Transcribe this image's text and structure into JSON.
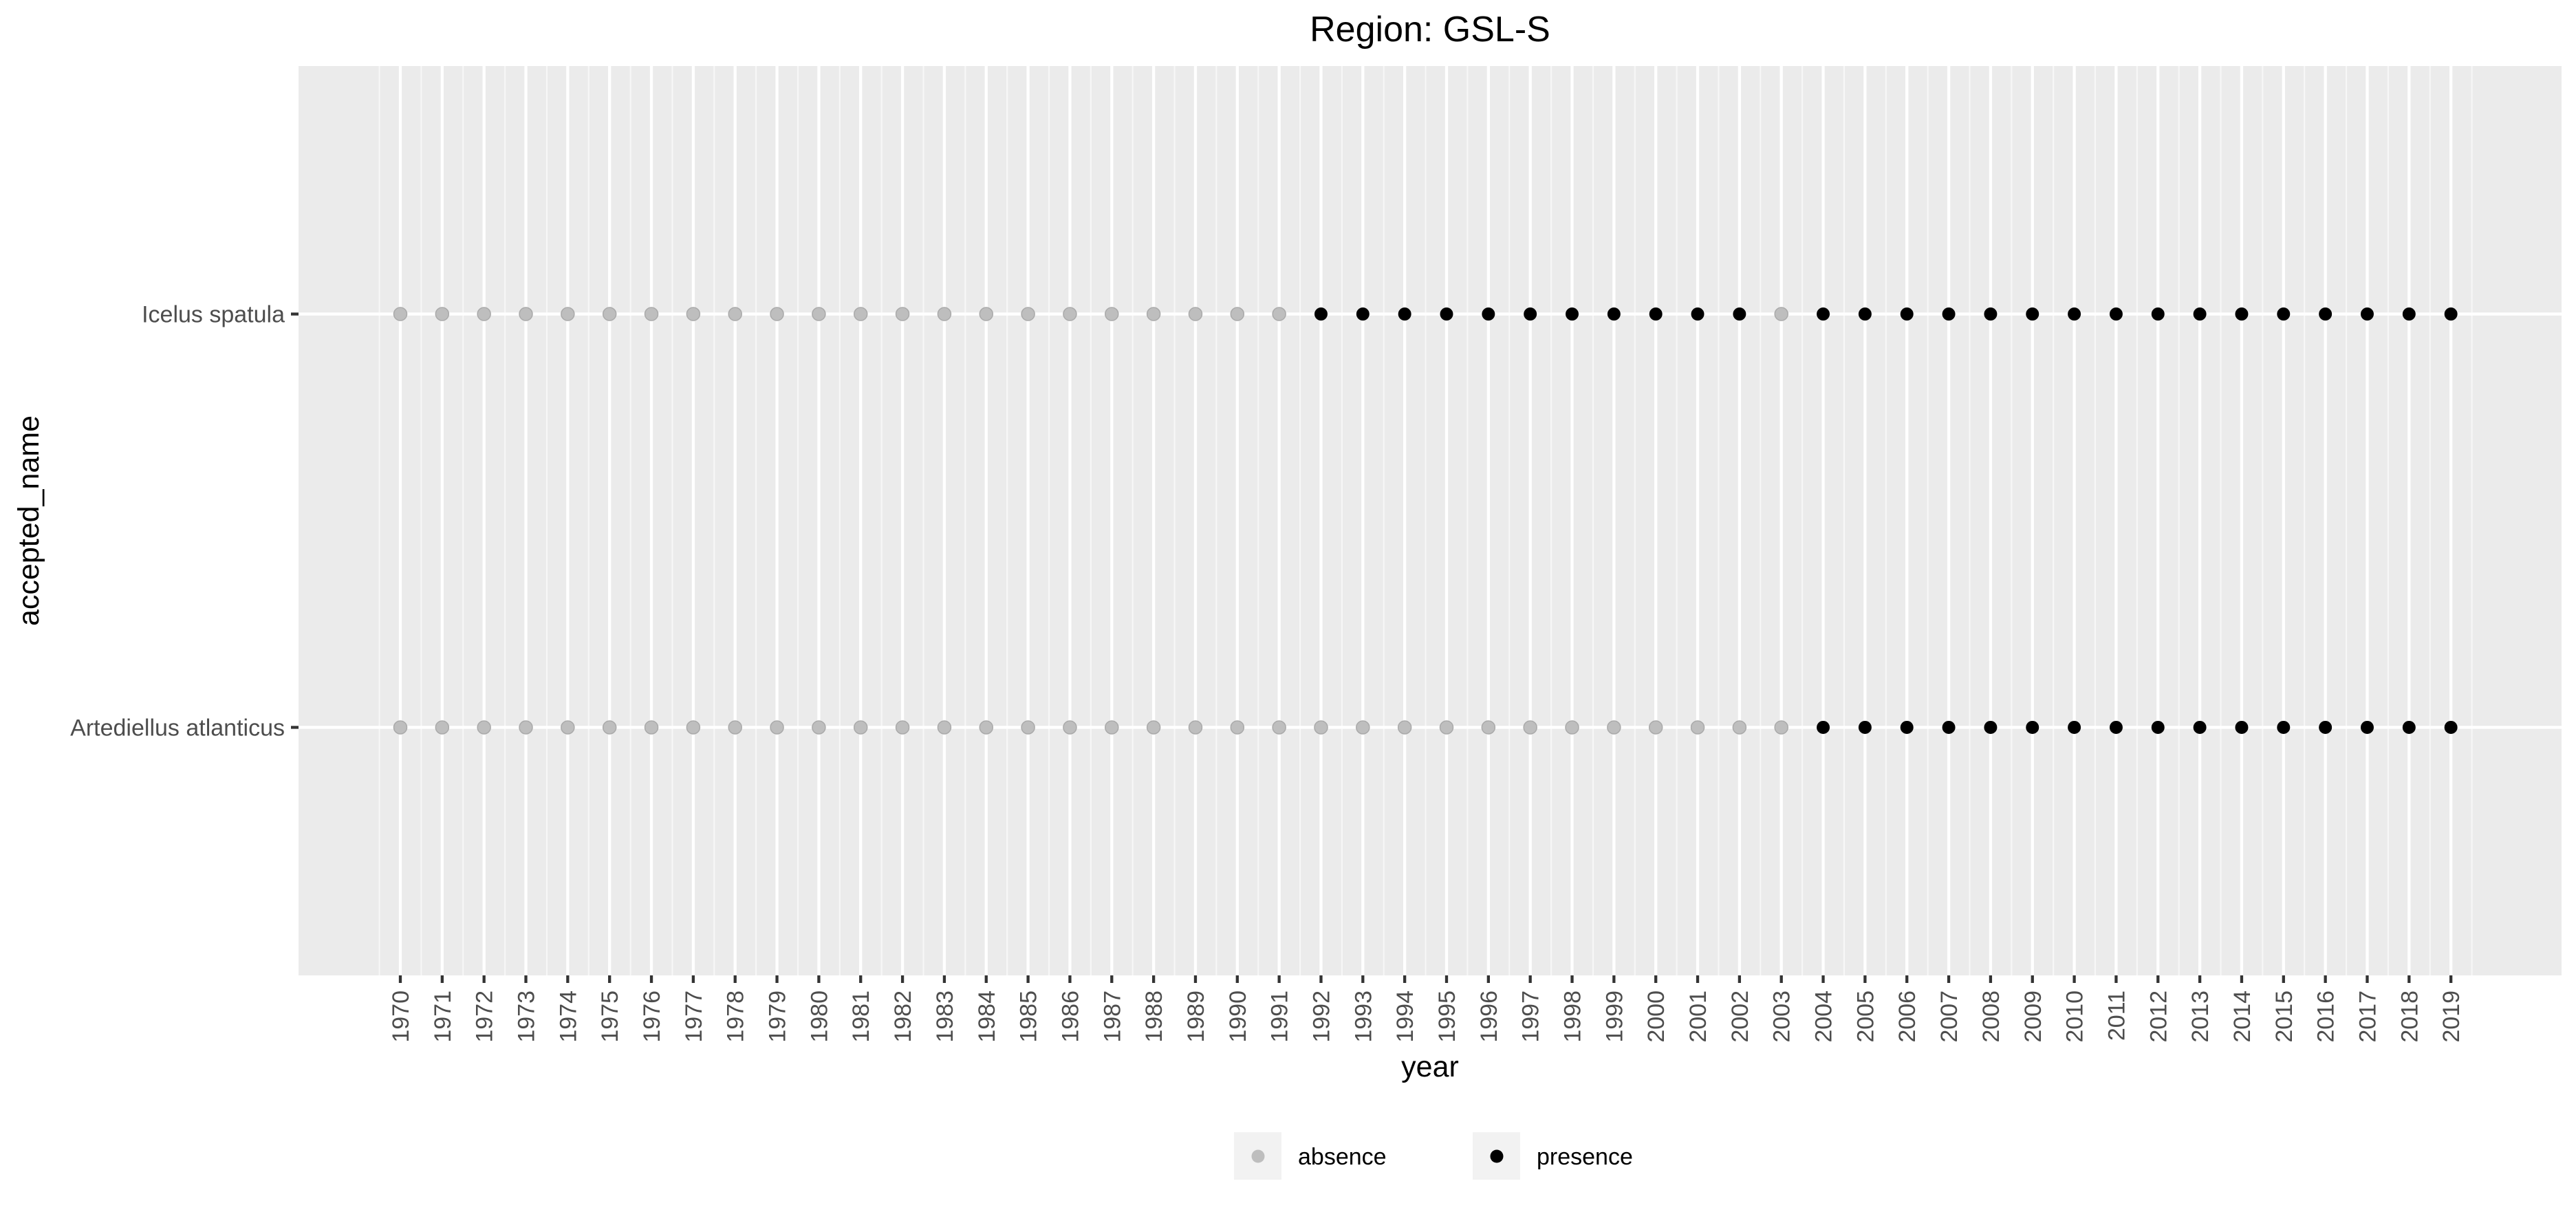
{
  "chart_data": {
    "type": "scatter",
    "title": "Region: GSL-S",
    "xlabel": "year",
    "ylabel": "accepted_name",
    "x_categories": [
      "1970",
      "1971",
      "1972",
      "1973",
      "1974",
      "1975",
      "1976",
      "1977",
      "1978",
      "1979",
      "1980",
      "1981",
      "1982",
      "1983",
      "1984",
      "1985",
      "1986",
      "1987",
      "1988",
      "1989",
      "1990",
      "1991",
      "1992",
      "1993",
      "1994",
      "1995",
      "1996",
      "1997",
      "1998",
      "1999",
      "2000",
      "2001",
      "2002",
      "2003",
      "2004",
      "2005",
      "2006",
      "2007",
      "2008",
      "2009",
      "2010",
      "2011",
      "2012",
      "2013",
      "2014",
      "2015",
      "2016",
      "2017",
      "2018",
      "2019"
    ],
    "y_categories": [
      "Artediellus atlanticus",
      "Icelus spatula"
    ],
    "series": [
      {
        "name": "Icelus spatula",
        "status": [
          "absence",
          "absence",
          "absence",
          "absence",
          "absence",
          "absence",
          "absence",
          "absence",
          "absence",
          "absence",
          "absence",
          "absence",
          "absence",
          "absence",
          "absence",
          "absence",
          "absence",
          "absence",
          "absence",
          "absence",
          "absence",
          "absence",
          "presence",
          "presence",
          "presence",
          "presence",
          "presence",
          "presence",
          "presence",
          "presence",
          "presence",
          "presence",
          "presence",
          "absence",
          "presence",
          "presence",
          "presence",
          "presence",
          "presence",
          "presence",
          "presence",
          "presence",
          "presence",
          "presence",
          "presence",
          "presence",
          "presence",
          "presence",
          "presence",
          "presence"
        ]
      },
      {
        "name": "Artediellus atlanticus",
        "status": [
          "absence",
          "absence",
          "absence",
          "absence",
          "absence",
          "absence",
          "absence",
          "absence",
          "absence",
          "absence",
          "absence",
          "absence",
          "absence",
          "absence",
          "absence",
          "absence",
          "absence",
          "absence",
          "absence",
          "absence",
          "absence",
          "absence",
          "absence",
          "absence",
          "absence",
          "absence",
          "absence",
          "absence",
          "absence",
          "absence",
          "absence",
          "absence",
          "absence",
          "absence",
          "presence",
          "presence",
          "presence",
          "presence",
          "presence",
          "presence",
          "presence",
          "presence",
          "presence",
          "presence",
          "presence",
          "presence",
          "presence",
          "presence",
          "presence",
          "presence"
        ]
      }
    ],
    "legend": {
      "position": "bottom",
      "entries": [
        {
          "label": "absence",
          "color": "#BEBEBE"
        },
        {
          "label": "presence",
          "color": "#000000"
        }
      ]
    },
    "colors": {
      "absence": "#BEBEBE",
      "presence": "#000000",
      "panel": "#EBEBEB"
    },
    "grid": true
  }
}
